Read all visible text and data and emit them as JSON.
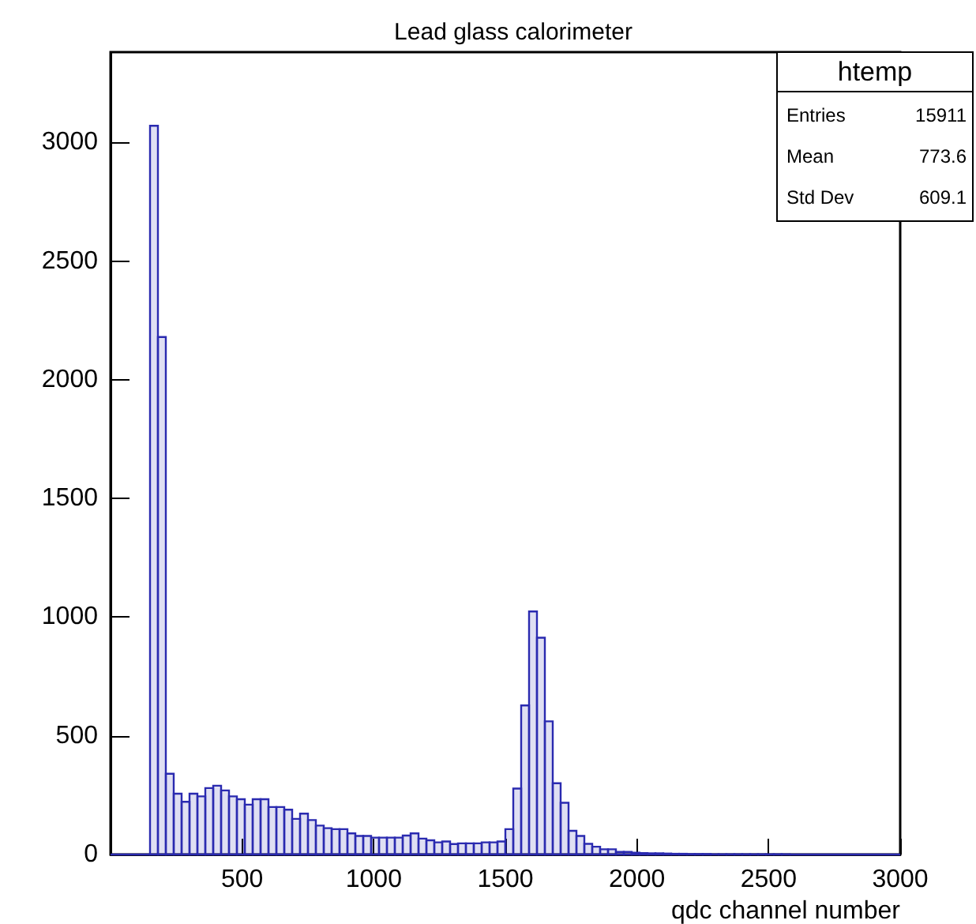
{
  "chart_data": {
    "type": "histogram",
    "title": "Lead glass calorimeter",
    "xlabel": "qdc channel number",
    "annotations": [
      "htemp",
      "Entries",
      "15911",
      "Mean",
      "773.6",
      "Std Dev",
      "609.1"
    ],
    "bins": [
      0,
      30,
      60,
      90,
      120,
      150,
      180,
      210,
      240,
      270,
      300,
      330,
      360,
      390,
      420,
      450,
      480,
      510,
      540,
      570,
      600,
      630,
      660,
      690,
      720,
      750,
      780,
      810,
      840,
      870,
      900,
      930,
      960,
      990,
      1020,
      1050,
      1080,
      1110,
      1140,
      1170,
      1200,
      1230,
      1260,
      1290,
      1320,
      1350,
      1380,
      1410,
      1440,
      1470,
      1500,
      1530,
      1560,
      1590,
      1620,
      1650,
      1680,
      1710,
      1740,
      1770,
      1800,
      1830,
      1860,
      1890,
      1920,
      1950,
      1980,
      2010,
      2040,
      2070,
      2100,
      2130,
      2160,
      2190,
      2220,
      2250,
      2280,
      2310,
      2340,
      2370,
      2400,
      2430,
      2460,
      2490,
      2520,
      2550,
      2580,
      2610,
      2640,
      2670,
      2700,
      2730,
      2760,
      2790,
      2820,
      2850,
      2880,
      2910,
      2940,
      2970,
      3000
    ],
    "values": [
      0,
      0,
      0,
      0,
      0,
      3070,
      2180,
      340,
      256,
      222,
      256,
      245,
      280,
      290,
      270,
      245,
      233,
      210,
      233,
      233,
      200,
      200,
      189,
      150,
      172,
      145,
      122,
      111,
      107,
      107,
      89,
      78,
      78,
      71,
      71,
      71,
      71,
      80,
      89,
      67,
      60,
      51,
      55,
      44,
      47,
      47,
      47,
      51,
      51,
      55,
      107,
      278,
      628,
      1024,
      913,
      561,
      300,
      218,
      100,
      78,
      45,
      33,
      22,
      22,
      11,
      11,
      8,
      6,
      5,
      5,
      4,
      3,
      3,
      2,
      2,
      2,
      1,
      1,
      1,
      1,
      1,
      1,
      1,
      1,
      1,
      1,
      0,
      0,
      0,
      0,
      0,
      0,
      0,
      0,
      0,
      0,
      0,
      0,
      0,
      0
    ],
    "color": "#2a2ab0",
    "xlim": [
      0,
      3000
    ],
    "xticks": [
      {
        "value": 0,
        "label": null
      },
      500,
      1000,
      1500,
      2000,
      2500,
      3000
    ],
    "ylim": [
      0,
      3380
    ],
    "yticks": [
      0,
      500,
      1000,
      1500,
      2000,
      2500,
      3000
    ],
    "grid": false
  }
}
